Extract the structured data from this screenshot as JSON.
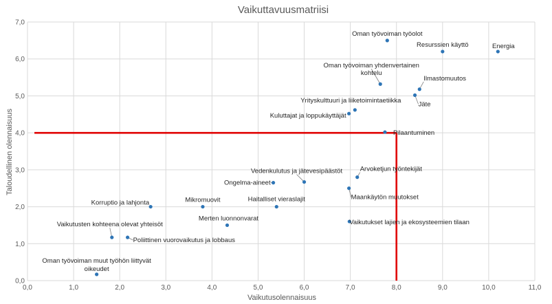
{
  "chart_data": {
    "type": "scatter",
    "title": "Vaikuttavuusmatriisi",
    "xlabel": "Vaikutusolennaisuus",
    "ylabel": "Taloudellinen olennaisuus",
    "xlim": [
      0,
      11
    ],
    "ylim": [
      0,
      7
    ],
    "xticks": [
      "0,0",
      "1,0",
      "2,0",
      "3,0",
      "4,0",
      "5,0",
      "6,0",
      "7,0",
      "8,0",
      "9,0",
      "10,0",
      "11,0"
    ],
    "yticks": [
      "0,0",
      "1,0",
      "2,0",
      "3,0",
      "4,0",
      "5,0",
      "6,0",
      "7,0"
    ],
    "grid": true,
    "legend": "none",
    "point_color": "#2e75b6",
    "threshold_color": "#e00000",
    "thresholds": {
      "x": 8,
      "y": 4
    },
    "points": [
      {
        "label": "Oman työvoiman työolot",
        "x": 7.8,
        "y": 6.5
      },
      {
        "label": "Resurssien käyttö",
        "x": 9.0,
        "y": 6.2
      },
      {
        "label": "Energia",
        "x": 10.2,
        "y": 6.2
      },
      {
        "label": "Oman työvoiman yhdenvertainen kohtelu",
        "x": 7.65,
        "y": 5.32
      },
      {
        "label": "Ilmastomuutos",
        "x": 8.5,
        "y": 5.18
      },
      {
        "label": "Jäte",
        "x": 8.4,
        "y": 5.02
      },
      {
        "label": "Yrityskulttuuri ja liiketoimintaetiikka",
        "x": 7.1,
        "y": 4.62
      },
      {
        "label": "Kuluttajat ja loppukäyttäjät",
        "x": 6.97,
        "y": 4.52
      },
      {
        "label": "Pilaantuminen",
        "x": 7.75,
        "y": 4.02
      },
      {
        "label": "Vedenkulutus ja jätevesipäästöt",
        "x": 6.0,
        "y": 2.67
      },
      {
        "label": "Ongelma-aineet",
        "x": 5.33,
        "y": 2.65
      },
      {
        "label": "Arvoketjun työntekijät",
        "x": 7.15,
        "y": 2.8
      },
      {
        "label": "Maankäytön muutokset",
        "x": 6.97,
        "y": 2.5
      },
      {
        "label": "Korruptio ja lahjonta",
        "x": 2.67,
        "y": 2.0
      },
      {
        "label": "Mikromuovit",
        "x": 3.8,
        "y": 2.0
      },
      {
        "label": "Haitalliset vieraslajit",
        "x": 5.4,
        "y": 2.0
      },
      {
        "label": "Merten luonnonvarat",
        "x": 4.33,
        "y": 1.5
      },
      {
        "label": "Vaikutukset lajien ja ekosysteemien tilaan",
        "x": 6.98,
        "y": 1.6
      },
      {
        "label": "Vaikutusten kohteena olevat yhteisöt",
        "x": 1.83,
        "y": 1.17
      },
      {
        "label": "Poliittinen vuorovaikutus ja lobbaus",
        "x": 2.17,
        "y": 1.17
      },
      {
        "label": "Oman työvoiman muut työhön liittyvät oikeudet",
        "x": 1.5,
        "y": 0.17
      }
    ]
  }
}
